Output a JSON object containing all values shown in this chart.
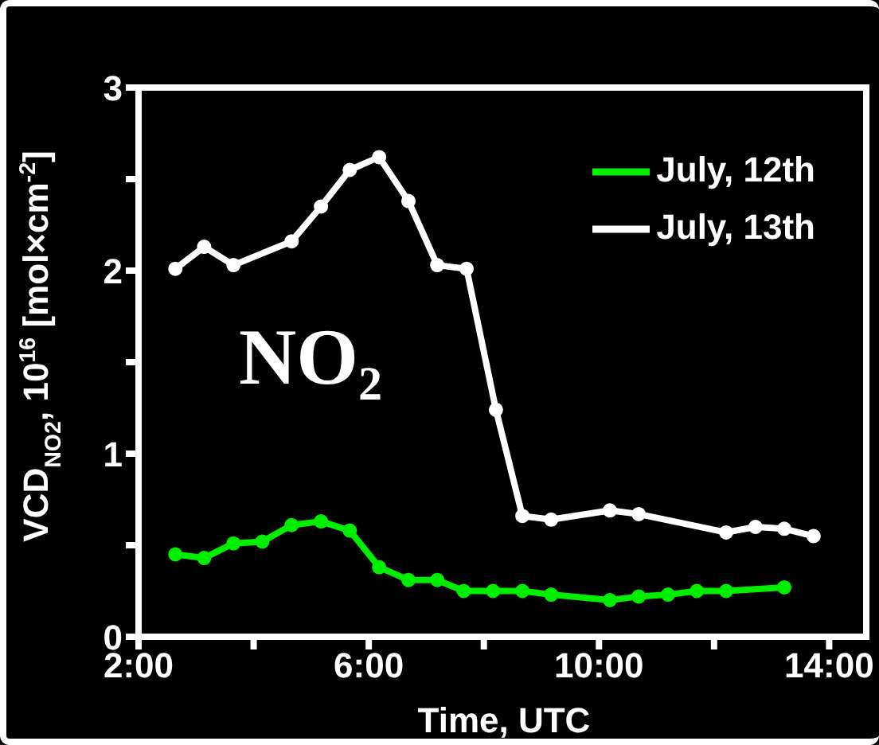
{
  "chart_data": {
    "type": "line",
    "xlabel": "Time, UTC",
    "ylabel": "VCD$_{NO2}$, 10$^{16}$ [mol×cm$^{-2}$]",
    "annotations": [
      "NO₂"
    ],
    "series": [
      {
        "name": "July, 12th",
        "color": "#00ee00",
        "x": [
          2.64,
          3.14,
          3.65,
          4.15,
          4.66,
          5.17,
          5.67,
          6.18,
          6.69,
          7.19,
          7.65,
          8.16,
          8.67,
          9.17,
          10.19,
          10.69,
          11.2,
          11.7,
          12.21,
          13.22
        ],
        "values": [
          0.45,
          0.43,
          0.51,
          0.52,
          0.61,
          0.63,
          0.58,
          0.38,
          0.31,
          0.31,
          0.25,
          0.25,
          0.25,
          0.23,
          0.2,
          0.22,
          0.23,
          0.25,
          0.25,
          0.27
        ]
      },
      {
        "name": "July, 13th",
        "color": "#ffffff",
        "x": [
          2.64,
          3.14,
          3.65,
          4.66,
          5.17,
          5.67,
          6.18,
          6.69,
          7.19,
          7.7,
          8.21,
          8.67,
          9.17,
          10.19,
          10.69,
          12.21,
          12.72,
          13.22,
          13.73
        ],
        "values": [
          2.01,
          2.13,
          2.03,
          2.16,
          2.35,
          2.55,
          2.62,
          2.38,
          2.03,
          2.01,
          1.24,
          0.66,
          0.64,
          0.69,
          0.67,
          0.57,
          0.6,
          0.59,
          0.55
        ]
      }
    ],
    "xlim": [
      2,
      14.7
    ],
    "xticks": [
      {
        "value": 2,
        "label": "2:00"
      },
      {
        "value": 4,
        "label": null
      },
      {
        "value": 6,
        "label": "6:00"
      },
      {
        "value": 8,
        "label": null
      },
      {
        "value": 10,
        "label": "10:00"
      },
      {
        "value": 12,
        "label": null
      },
      {
        "value": 14,
        "label": "14:00"
      }
    ],
    "ylim": [
      0,
      3
    ],
    "yticks": [
      0,
      {
        "value": 0.5,
        "label": null
      },
      1,
      {
        "value": 1.5,
        "label": null
      },
      2,
      {
        "value": 2.5,
        "label": null
      },
      3
    ],
    "grid": false,
    "legend": "top right",
    "marker": "circle",
    "line_style": "solid"
  }
}
